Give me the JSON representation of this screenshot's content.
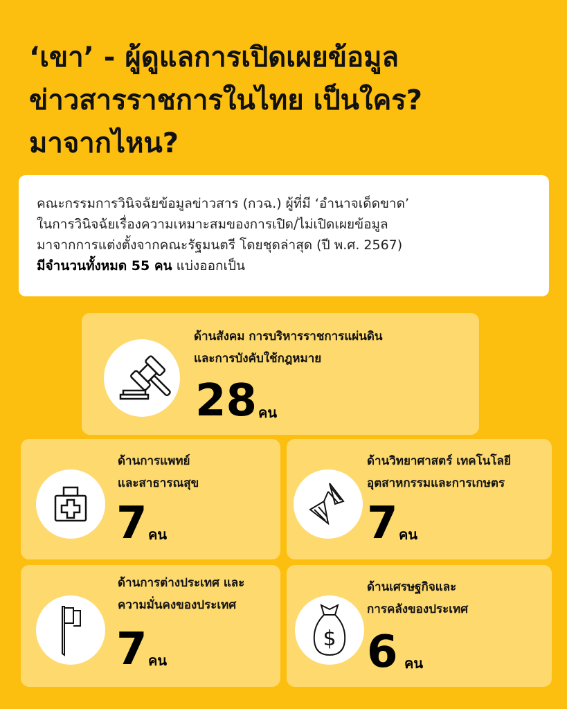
{
  "title": {
    "line1": "‘เขา’ - ผู้ดูแลการเปิดเผยข้อมูล",
    "line2": "ข่าวสารราชการในไทย เป็นใคร?",
    "line3": "มาจากไหน?"
  },
  "intro": {
    "line1": "คณะกรรมการวินิจฉัยข้อมูลข่าวสาร (กวฉ.) ผู้ที่มี ‘อำนาจเด็ดขาด’",
    "line2": "ในการวินิจฉัยเรื่องความเหมาะสมของการเปิด/ไม่เปิดเผยข้อมูล",
    "line3": "มาจากการแต่งตั้งจากคณะรัฐมนตรี โดยชุดล่าสุด (ปี พ.ศ. 2567)",
    "bold": "มีจำนวนทั้งหมด 55 คน",
    "rest": " แบ่งออกเป็น"
  },
  "colors": {
    "background": "#FCBF0F",
    "card": "#FDD96E",
    "intro_box": "#FFFFFF"
  },
  "groups": [
    {
      "label1": "ด้านสังคม การบริหารราชการแผ่นดิน",
      "label2": "และการบังคับใช้กฎหมาย",
      "count": "28",
      "unit": "คน",
      "icon": "gavel-icon"
    },
    {
      "label1": "ด้านการแพทย์",
      "label2": "และสาธารณสุข",
      "count": "7",
      "unit": "คน",
      "icon": "medical-kit-icon"
    },
    {
      "label1": "ด้านวิทยาศาสตร์ เทคโนโลยี",
      "label2": "อุตสาหกรรมและการเกษตร",
      "count": "7",
      "unit": "คน",
      "icon": "dna-icon"
    },
    {
      "label1": "ด้านการต่างประเทศ และ",
      "label2": "ความมั่นคงของประเทศ",
      "count": "7",
      "unit": "คน",
      "icon": "flag-icon"
    },
    {
      "label1": "ด้านเศรษฐกิจและ",
      "label2": "การคลังของประเทศ",
      "count": "6",
      "unit": "คน",
      "icon": "money-bag-icon"
    }
  ]
}
